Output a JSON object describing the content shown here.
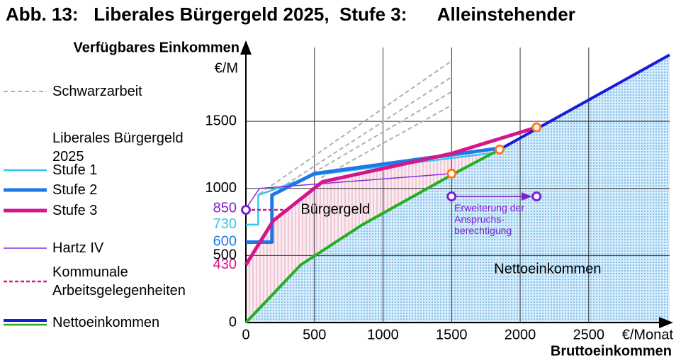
{
  "chart_data": {
    "type": "line",
    "title": "Abb. 13:   Liberales Bürgergeld 2025,  Stufe 3:      Alleinstehender",
    "y_label": "Verfügbares Einkommen",
    "y_unit": "€/M",
    "x_label": "Bruttoeinkommen",
    "x_unit": "€/Monat",
    "xlim": [
      0,
      3090
    ],
    "ylim": [
      0,
      2050
    ],
    "xticks": [
      0,
      500,
      1000,
      1500,
      2000,
      2500
    ],
    "yticks": [
      0,
      500,
      1000,
      1500
    ],
    "grid": true,
    "legend_title": "Liberales Bürgergeld 2025",
    "series": [
      {
        "name": "Schwarzarbeit",
        "color": "#b0b0b0",
        "dash": "6,4",
        "width": 2,
        "x": [
          100,
          1500,
          null,
          250,
          1500,
          null,
          400,
          1500,
          null,
          550,
          1500
        ],
        "values": [
          960,
          1950,
          null,
          1000,
          1830,
          null,
          1060,
          1720,
          null,
          1080,
          1620
        ]
      },
      {
        "name": "Stufe 1",
        "color": "#33c8f0",
        "width": 2.5,
        "x": [
          0,
          90,
          90,
          500,
          1850
        ],
        "values": [
          730,
          730,
          950,
          1100,
          1270
        ]
      },
      {
        "name": "Stufe 2",
        "color": "#1e78e8",
        "width": 5,
        "x": [
          0,
          190,
          190,
          500,
          1850
        ],
        "values": [
          600,
          600,
          950,
          1110,
          1300
        ]
      },
      {
        "name": "Stufe 3",
        "color": "#d4168a",
        "width": 5,
        "x": [
          0,
          200,
          560,
          1500,
          2120
        ],
        "values": [
          430,
          760,
          1050,
          1260,
          1455
        ]
      },
      {
        "name": "Hartz IV",
        "color": "#8a2be2",
        "width": 1.5,
        "x": [
          0,
          100,
          1500
        ],
        "values": [
          850,
          1000,
          1110
        ]
      },
      {
        "name": "Kommunale Arbeitsgelegenheiten",
        "color": "#d4168a",
        "dash": "5,3",
        "width": 2.5,
        "x": [
          0,
          330
        ],
        "values": [
          840,
          840
        ]
      },
      {
        "name": "Nettoeinkommen",
        "color": "#1a1adb",
        "low_color": "#22b022",
        "low_until": 1850,
        "width": 4,
        "x": [
          0,
          400,
          850,
          1500,
          1850,
          3090
        ],
        "values": [
          0,
          430,
          730,
          1100,
          1290,
          1995
        ]
      }
    ],
    "markers": [
      {
        "color": "#ff7a20",
        "x": [
          1500,
          1850,
          2120
        ],
        "values": [
          1110,
          1290,
          1455
        ]
      },
      {
        "color": "#7a20d0",
        "x": [
          0,
          1500,
          2120
        ],
        "values": [
          840,
          940,
          940
        ]
      }
    ],
    "y_annotations": [
      {
        "value": 850,
        "color": "#7a20d0"
      },
      {
        "value": 730,
        "color": "#33c8f0"
      },
      {
        "value": 600,
        "color": "#1e78e8"
      },
      {
        "value": 430,
        "color": "#d4168a"
      }
    ],
    "annotations": [
      {
        "text": "Bürgergeld",
        "x": 400,
        "y": 840,
        "color": "#000000",
        "size": 20
      },
      {
        "text": "Nettoeinkommen",
        "x": 1810,
        "y": 395,
        "color": "#000000",
        "size": 20
      },
      {
        "text": "Erweiterung der",
        "x": 1520,
        "y": 850,
        "color": "#7a20d0",
        "size": 14
      },
      {
        "text": "Anspruchs-",
        "x": 1520,
        "y": 765,
        "color": "#7a20d0",
        "size": 14
      },
      {
        "text": "berechtigung",
        "x": 1520,
        "y": 680,
        "color": "#7a20d0",
        "size": 14
      }
    ]
  }
}
